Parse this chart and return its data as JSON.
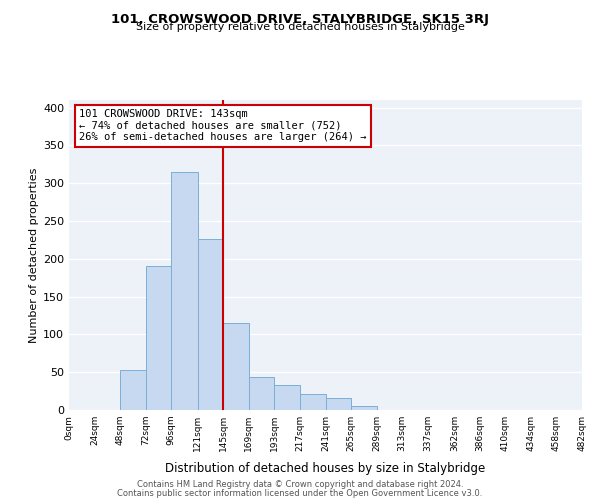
{
  "title": "101, CROWSWOOD DRIVE, STALYBRIDGE, SK15 3RJ",
  "subtitle": "Size of property relative to detached houses in Stalybridge",
  "xlabel": "Distribution of detached houses by size in Stalybridge",
  "ylabel": "Number of detached properties",
  "bar_edges": [
    0,
    24,
    48,
    72,
    96,
    121,
    145,
    169,
    193,
    217,
    241,
    265,
    289,
    313,
    337,
    362,
    386,
    410,
    434,
    458,
    482
  ],
  "bar_heights": [
    0,
    0,
    53,
    190,
    315,
    226,
    115,
    44,
    33,
    21,
    16,
    5,
    0,
    0,
    0,
    0,
    0,
    0,
    0,
    0
  ],
  "tick_labels": [
    "0sqm",
    "24sqm",
    "48sqm",
    "72sqm",
    "96sqm",
    "121sqm",
    "145sqm",
    "169sqm",
    "193sqm",
    "217sqm",
    "241sqm",
    "265sqm",
    "289sqm",
    "313sqm",
    "337sqm",
    "362sqm",
    "386sqm",
    "410sqm",
    "434sqm",
    "458sqm",
    "482sqm"
  ],
  "bar_color": "#c6d9f0",
  "bar_edge_color": "#7bafd4",
  "vline_x": 145,
  "vline_color": "#cc0000",
  "annotation_text": "101 CROWSWOOD DRIVE: 143sqm\n← 74% of detached houses are smaller (752)\n26% of semi-detached houses are larger (264) →",
  "annotation_box_color": "#ffffff",
  "annotation_box_edge": "#cc0000",
  "ylim": [
    0,
    410
  ],
  "yticks": [
    0,
    50,
    100,
    150,
    200,
    250,
    300,
    350,
    400
  ],
  "footer_line1": "Contains HM Land Registry data © Crown copyright and database right 2024.",
  "footer_line2": "Contains public sector information licensed under the Open Government Licence v3.0.",
  "bg_color": "#ffffff",
  "plot_bg_color": "#edf1f8",
  "grid_color": "#ffffff"
}
